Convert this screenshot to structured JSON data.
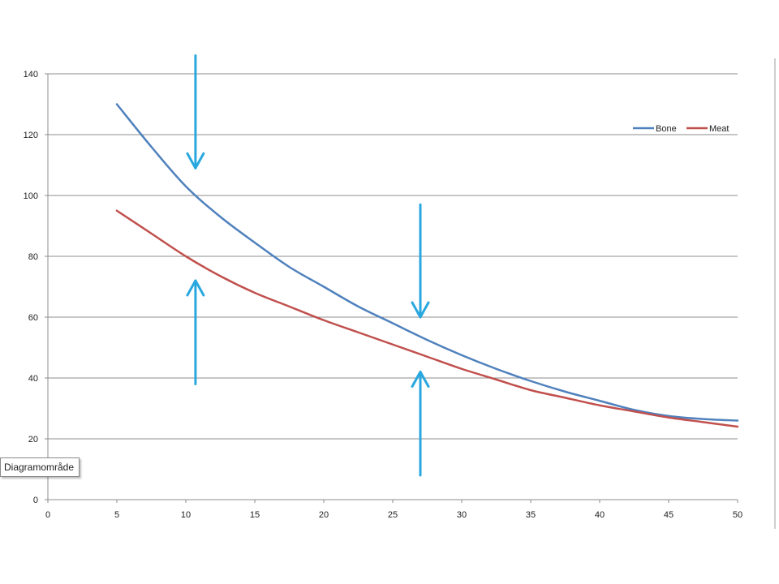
{
  "chart_data": {
    "type": "line",
    "title": "",
    "xlabel": "",
    "ylabel": "",
    "xlim": [
      0,
      50
    ],
    "ylim": [
      0,
      140
    ],
    "x_ticks": [
      0,
      5,
      10,
      15,
      20,
      25,
      30,
      35,
      40,
      45,
      50
    ],
    "y_ticks": [
      0,
      20,
      40,
      60,
      80,
      100,
      120,
      140
    ],
    "grid": "horizontal",
    "legend_position": "top-right",
    "series": [
      {
        "name": "Bone",
        "color": "#4f81bd",
        "x": [
          5,
          7.5,
          10,
          12.5,
          15,
          17.5,
          20,
          22.5,
          25,
          27.5,
          30,
          32.5,
          35,
          37.5,
          40,
          42.5,
          45,
          47.5,
          50
        ],
        "y": [
          130,
          116,
          103,
          93,
          84.5,
          76.5,
          70,
          63.5,
          58,
          52.5,
          47.5,
          43,
          39,
          35.5,
          32.5,
          29.5,
          27.5,
          26.5,
          26
        ]
      },
      {
        "name": "Meat",
        "color": "#c0504d",
        "x": [
          5,
          7.5,
          10,
          12.5,
          15,
          17.5,
          20,
          22.5,
          25,
          27.5,
          30,
          32.5,
          35,
          37.5,
          40,
          42.5,
          45,
          47.5,
          50
        ],
        "y": [
          95,
          87.5,
          80,
          73.5,
          68,
          63.5,
          59,
          55,
          51,
          47,
          43,
          39.5,
          36,
          33.5,
          31,
          29,
          27,
          25.5,
          24
        ]
      }
    ],
    "annotations": [
      {
        "type": "arrow-down",
        "x": 10.7,
        "y_from": 146,
        "y_to": 109,
        "color": "#29a8df"
      },
      {
        "type": "arrow-up",
        "x": 10.7,
        "y_from": 38,
        "y_to": 72,
        "color": "#29a8df"
      },
      {
        "type": "arrow-down",
        "x": 27,
        "y_from": 97,
        "y_to": 60,
        "color": "#29a8df"
      },
      {
        "type": "arrow-up",
        "x": 27,
        "y_from": 8,
        "y_to": 42,
        "color": "#29a8df"
      }
    ]
  },
  "tooltip": {
    "label": "Diagramområde"
  }
}
